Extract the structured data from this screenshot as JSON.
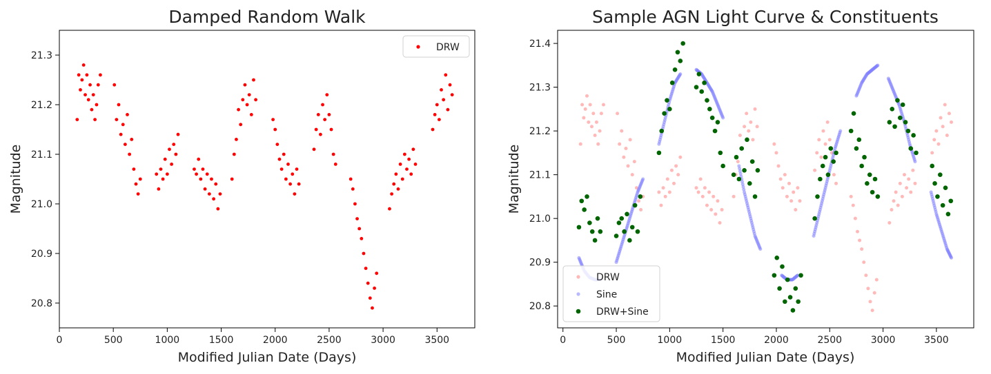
{
  "chart_data": [
    {
      "type": "scatter",
      "title": "Damped Random Walk",
      "xlabel": "Modified Julian Date (Days)",
      "ylabel": "Magnitude",
      "xlim": [
        0,
        3850
      ],
      "ylim": [
        21.35,
        20.75
      ],
      "y_inverted": true,
      "xticks": [
        0,
        500,
        1000,
        1500,
        2000,
        2500,
        3000,
        3500
      ],
      "yticks": [
        20.8,
        20.9,
        21.0,
        21.1,
        21.2,
        21.3
      ],
      "ytick_labels": [
        "20.8",
        "20.9",
        "21.0",
        "21.1",
        "21.2",
        "21.3"
      ],
      "legend_position": "top-right",
      "series": [
        {
          "name": "DRW",
          "color": "#ff0000",
          "x": [
            165,
            180,
            195,
            210,
            225,
            240,
            255,
            270,
            285,
            300,
            315,
            330,
            345,
            360,
            380,
            510,
            530,
            550,
            570,
            590,
            610,
            630,
            650,
            670,
            690,
            710,
            730,
            750,
            900,
            920,
            940,
            960,
            980,
            1000,
            1020,
            1040,
            1060,
            1080,
            1100,
            1250,
            1270,
            1290,
            1310,
            1330,
            1350,
            1370,
            1390,
            1410,
            1430,
            1450,
            1470,
            1490,
            1600,
            1620,
            1640,
            1660,
            1680,
            1700,
            1720,
            1740,
            1760,
            1780,
            1800,
            1820,
            1980,
            2000,
            2020,
            2040,
            2060,
            2080,
            2100,
            2120,
            2140,
            2160,
            2180,
            2200,
            2220,
            2360,
            2380,
            2400,
            2420,
            2440,
            2460,
            2480,
            2500,
            2520,
            2540,
            2560,
            2700,
            2720,
            2740,
            2760,
            2780,
            2800,
            2820,
            2840,
            2860,
            2880,
            2900,
            2920,
            2940,
            3060,
            3080,
            3100,
            3120,
            3140,
            3160,
            3180,
            3200,
            3220,
            3240,
            3260,
            3280,
            3300,
            3460,
            3480,
            3500,
            3520,
            3540,
            3560,
            3580,
            3600,
            3620,
            3640
          ],
          "y": [
            21.17,
            21.26,
            21.23,
            21.25,
            21.28,
            21.22,
            21.26,
            21.21,
            21.24,
            21.19,
            21.22,
            21.17,
            21.2,
            21.24,
            21.26,
            21.24,
            21.17,
            21.2,
            21.14,
            21.16,
            21.12,
            21.18,
            21.1,
            21.13,
            21.07,
            21.04,
            21.02,
            21.05,
            21.06,
            21.03,
            21.07,
            21.05,
            21.09,
            21.06,
            21.11,
            21.08,
            21.12,
            21.1,
            21.14,
            21.07,
            21.06,
            21.09,
            21.05,
            21.07,
            21.03,
            21.06,
            21.02,
            21.05,
            21.01,
            21.04,
            20.99,
            21.02,
            21.05,
            21.1,
            21.13,
            21.19,
            21.16,
            21.21,
            21.24,
            21.2,
            21.22,
            21.18,
            21.25,
            21.21,
            21.17,
            21.15,
            21.12,
            21.09,
            21.07,
            21.1,
            21.05,
            21.08,
            21.04,
            21.06,
            21.02,
            21.07,
            21.04,
            21.11,
            21.15,
            21.18,
            21.14,
            21.2,
            21.17,
            21.22,
            21.18,
            21.15,
            21.1,
            21.08,
            21.05,
            21.03,
            21.0,
            20.97,
            20.95,
            20.93,
            20.9,
            20.87,
            20.84,
            20.81,
            20.79,
            20.83,
            20.86,
            20.99,
            21.02,
            21.04,
            21.06,
            21.03,
            21.08,
            21.05,
            21.1,
            21.07,
            21.09,
            21.06,
            21.11,
            21.08,
            21.15,
            21.18,
            21.2,
            21.17,
            21.23,
            21.21,
            21.26,
            21.19,
            21.24,
            21.22
          ],
          "marker": "circle"
        }
      ]
    },
    {
      "type": "scatter",
      "title": "Sample AGN Light Curve & Constituents",
      "xlabel": "Modified Julian Date (Days)",
      "ylabel": "Magnitude",
      "xlim": [
        -50,
        3850
      ],
      "ylim": [
        21.43,
        20.75
      ],
      "y_inverted": true,
      "xticks": [
        0,
        500,
        1000,
        1500,
        2000,
        2500,
        3000,
        3500
      ],
      "yticks": [
        20.8,
        20.9,
        21.0,
        21.1,
        21.2,
        21.3,
        21.4
      ],
      "ytick_labels": [
        "20.8",
        "20.9",
        "21.0",
        "21.1",
        "21.2",
        "21.3",
        "21.4"
      ],
      "legend_position": "bottom-left",
      "series": [
        {
          "name": "DRW",
          "color": "#ff8080",
          "x": [
            165,
            180,
            195,
            210,
            225,
            240,
            255,
            270,
            285,
            300,
            315,
            330,
            345,
            360,
            380,
            510,
            530,
            550,
            570,
            590,
            610,
            630,
            650,
            670,
            690,
            710,
            730,
            750,
            900,
            920,
            940,
            960,
            980,
            1000,
            1020,
            1040,
            1060,
            1080,
            1100,
            1250,
            1270,
            1290,
            1310,
            1330,
            1350,
            1370,
            1390,
            1410,
            1430,
            1450,
            1470,
            1490,
            1600,
            1620,
            1640,
            1660,
            1680,
            1700,
            1720,
            1740,
            1760,
            1780,
            1800,
            1820,
            1980,
            2000,
            2020,
            2040,
            2060,
            2080,
            2100,
            2120,
            2140,
            2160,
            2180,
            2200,
            2220,
            2360,
            2380,
            2400,
            2420,
            2440,
            2460,
            2480,
            2500,
            2520,
            2540,
            2560,
            2700,
            2720,
            2740,
            2760,
            2780,
            2800,
            2820,
            2840,
            2860,
            2880,
            2900,
            2920,
            2940,
            3060,
            3080,
            3100,
            3120,
            3140,
            3160,
            3180,
            3200,
            3220,
            3240,
            3260,
            3280,
            3300,
            3460,
            3480,
            3500,
            3520,
            3540,
            3560,
            3580,
            3600,
            3620,
            3640
          ],
          "y": [
            21.17,
            21.26,
            21.23,
            21.25,
            21.28,
            21.22,
            21.26,
            21.21,
            21.24,
            21.19,
            21.22,
            21.17,
            21.2,
            21.24,
            21.26,
            21.24,
            21.17,
            21.2,
            21.14,
            21.16,
            21.12,
            21.18,
            21.1,
            21.13,
            21.07,
            21.04,
            21.02,
            21.05,
            21.06,
            21.03,
            21.07,
            21.05,
            21.09,
            21.06,
            21.11,
            21.08,
            21.12,
            21.1,
            21.14,
            21.07,
            21.06,
            21.09,
            21.05,
            21.07,
            21.03,
            21.06,
            21.02,
            21.05,
            21.01,
            21.04,
            20.99,
            21.02,
            21.05,
            21.1,
            21.13,
            21.19,
            21.16,
            21.21,
            21.24,
            21.2,
            21.22,
            21.18,
            21.25,
            21.21,
            21.17,
            21.15,
            21.12,
            21.09,
            21.07,
            21.1,
            21.05,
            21.08,
            21.04,
            21.06,
            21.02,
            21.07,
            21.04,
            21.11,
            21.15,
            21.18,
            21.14,
            21.2,
            21.17,
            21.22,
            21.18,
            21.15,
            21.1,
            21.08,
            21.05,
            21.03,
            21.0,
            20.97,
            20.95,
            20.93,
            20.9,
            20.87,
            20.84,
            20.81,
            20.79,
            20.83,
            20.86,
            20.99,
            21.02,
            21.04,
            21.06,
            21.03,
            21.08,
            21.05,
            21.1,
            21.07,
            21.09,
            21.06,
            21.11,
            21.08,
            21.15,
            21.18,
            21.2,
            21.17,
            21.23,
            21.21,
            21.26,
            21.19,
            21.24,
            21.22
          ],
          "marker": "circle"
        },
        {
          "name": "Sine",
          "color": "#8080ff",
          "x": [
            150,
            200,
            250,
            300,
            350,
            500,
            550,
            600,
            650,
            700,
            750,
            900,
            950,
            1000,
            1050,
            1100,
            1250,
            1300,
            1350,
            1400,
            1450,
            1500,
            1650,
            1700,
            1750,
            1800,
            1850,
            2050,
            2100,
            2150,
            2200,
            2350,
            2400,
            2450,
            2500,
            2550,
            2600,
            2750,
            2800,
            2850,
            2900,
            2950,
            3050,
            3100,
            3150,
            3200,
            3250,
            3300,
            3450,
            3500,
            3550,
            3600,
            3640
          ],
          "y": [
            20.91,
            20.88,
            20.865,
            20.86,
            20.86,
            20.9,
            20.94,
            20.98,
            21.02,
            21.06,
            21.09,
            21.17,
            21.22,
            21.27,
            21.31,
            21.33,
            21.34,
            21.33,
            21.31,
            21.29,
            21.26,
            21.23,
            21.12,
            21.06,
            21.01,
            20.96,
            20.93,
            20.87,
            20.86,
            20.86,
            20.87,
            20.96,
            21.01,
            21.06,
            21.11,
            21.16,
            21.2,
            21.28,
            21.31,
            21.33,
            21.34,
            21.35,
            21.32,
            21.29,
            21.26,
            21.22,
            21.17,
            21.13,
            21.06,
            21.01,
            20.97,
            20.93,
            20.91
          ],
          "marker": "circle"
        },
        {
          "name": "DRW+Sine",
          "color": "#006400",
          "x": [
            150,
            175,
            200,
            225,
            250,
            275,
            300,
            325,
            350,
            500,
            525,
            550,
            575,
            600,
            625,
            650,
            675,
            700,
            725,
            900,
            925,
            950,
            975,
            1000,
            1025,
            1050,
            1075,
            1100,
            1125,
            1250,
            1275,
            1300,
            1325,
            1350,
            1375,
            1400,
            1425,
            1450,
            1475,
            1500,
            1600,
            1625,
            1650,
            1675,
            1700,
            1725,
            1750,
            1775,
            1800,
            1825,
            1980,
            2005,
            2030,
            2055,
            2080,
            2105,
            2130,
            2155,
            2180,
            2205,
            2230,
            2360,
            2385,
            2410,
            2435,
            2460,
            2485,
            2510,
            2535,
            2560,
            2700,
            2725,
            2750,
            2775,
            2800,
            2825,
            2850,
            2875,
            2900,
            2925,
            2950,
            3060,
            3085,
            3110,
            3135,
            3160,
            3185,
            3210,
            3235,
            3260,
            3285,
            3310,
            3460,
            3485,
            3510,
            3535,
            3560,
            3585,
            3610,
            3635
          ],
          "y": [
            20.98,
            21.04,
            21.02,
            21.05,
            20.99,
            20.97,
            20.95,
            21.0,
            20.97,
            20.96,
            20.99,
            21.0,
            20.97,
            21.01,
            20.95,
            20.98,
            21.03,
            20.97,
            21.05,
            21.15,
            21.2,
            21.24,
            21.27,
            21.25,
            21.31,
            21.34,
            21.38,
            21.36,
            21.4,
            21.3,
            21.33,
            21.29,
            21.31,
            21.27,
            21.25,
            21.23,
            21.2,
            21.22,
            21.15,
            21.12,
            21.1,
            21.14,
            21.09,
            21.16,
            21.11,
            21.18,
            21.08,
            21.13,
            21.05,
            21.11,
            20.87,
            20.91,
            20.84,
            20.89,
            20.81,
            20.86,
            20.82,
            20.79,
            20.84,
            20.81,
            20.87,
            21.0,
            21.05,
            21.09,
            21.12,
            21.14,
            21.1,
            21.16,
            21.13,
            21.15,
            21.2,
            21.24,
            21.16,
            21.18,
            21.12,
            21.14,
            21.08,
            21.1,
            21.06,
            21.09,
            21.05,
            21.22,
            21.25,
            21.21,
            21.27,
            21.23,
            21.26,
            21.22,
            21.2,
            21.16,
            21.19,
            21.15,
            21.12,
            21.08,
            21.05,
            21.1,
            21.03,
            21.07,
            21.01,
            21.04
          ],
          "marker": "circle"
        }
      ]
    }
  ]
}
